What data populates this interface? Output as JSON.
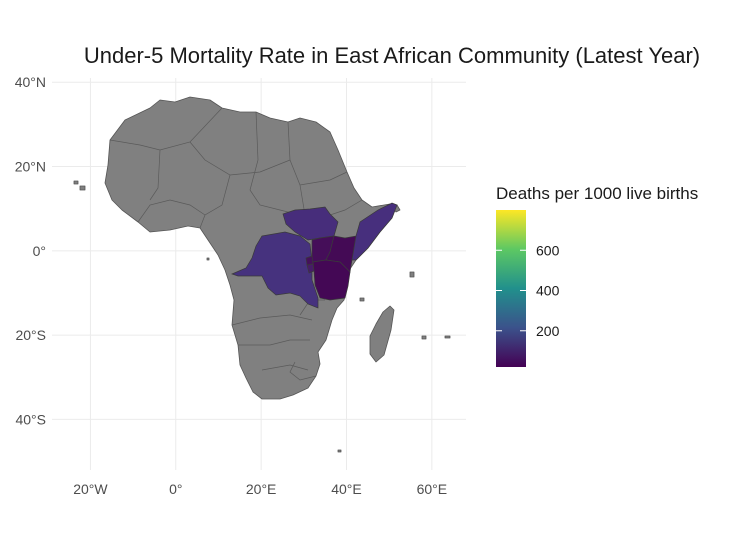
{
  "chart_data": {
    "type": "choropleth",
    "title": "Under-5 Mortality Rate in East African Community (Latest Year)",
    "x_axis": {
      "range": [
        -29,
        68
      ],
      "ticks": [
        {
          "value": -20,
          "label": "20°W"
        },
        {
          "value": 0,
          "label": "0°"
        },
        {
          "value": 20,
          "label": "20°E"
        },
        {
          "value": 40,
          "label": "40°E"
        },
        {
          "value": 60,
          "label": "60°E"
        }
      ]
    },
    "y_axis": {
      "range": [
        -52,
        41
      ],
      "ticks": [
        {
          "value": 40,
          "label": "40°N"
        },
        {
          "value": 20,
          "label": "20°N"
        },
        {
          "value": 0,
          "label": "0°"
        },
        {
          "value": -20,
          "label": "20°S"
        },
        {
          "value": -40,
          "label": "40°S"
        }
      ]
    },
    "grid": true,
    "legend": {
      "title": "Deaths per 1000 live births",
      "placement": "right",
      "range": [
        20,
        800
      ],
      "ticks": [
        200,
        400,
        600
      ],
      "palette": [
        "#440154",
        "#3b528b",
        "#21908c",
        "#5dc863",
        "#fde725"
      ]
    },
    "na_color": "#808080",
    "highlighted_countries": [
      {
        "name": "South Sudan",
        "color": "#472d7b"
      },
      {
        "name": "DR Congo",
        "color": "#46327e"
      },
      {
        "name": "Somalia",
        "color": "#472f7d"
      },
      {
        "name": "Kenya",
        "color": "#440a55"
      },
      {
        "name": "Uganda",
        "color": "#450e59"
      },
      {
        "name": "Tanzania",
        "color": "#440855"
      },
      {
        "name": "Rwanda",
        "color": "#45115a"
      },
      {
        "name": "Burundi",
        "color": "#461d67"
      }
    ]
  }
}
